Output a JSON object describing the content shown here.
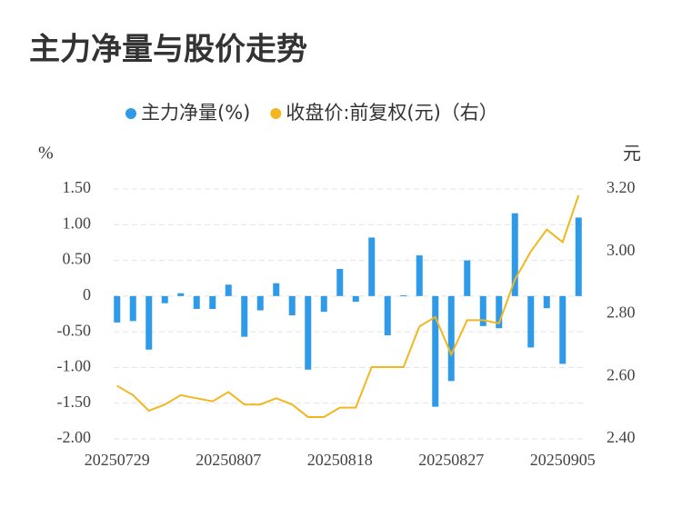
{
  "chart_data": {
    "type": "bar_line",
    "title": "主力净量与股价走势",
    "y_axis_label": "%",
    "y2_axis_label": "元",
    "categories": [
      "20250729",
      null,
      null,
      null,
      null,
      null,
      null,
      "20250807",
      null,
      null,
      null,
      null,
      null,
      null,
      "20250818",
      null,
      null,
      null,
      null,
      null,
      null,
      "20250827",
      null,
      null,
      null,
      null,
      null,
      null,
      "20250905",
      null
    ],
    "series": [
      {
        "name": "主力净量(%)",
        "color": "#2f9be8",
        "type": "bar",
        "values": [
          -0.37,
          -0.35,
          -0.75,
          -0.1,
          0.04,
          -0.18,
          -0.18,
          0.16,
          -0.57,
          -0.2,
          0.18,
          -0.27,
          -1.03,
          -0.22,
          0.38,
          -0.08,
          0.82,
          -0.55,
          0.01,
          0.57,
          -1.55,
          -1.19,
          0.5,
          -0.42,
          -0.45,
          1.16,
          -0.72,
          -0.17,
          -0.95,
          1.1
        ]
      },
      {
        "name": "收盘价:前复权(元)（右）",
        "color": "#f2b71f",
        "type": "line",
        "axis": "y2",
        "values": [
          2.57,
          2.54,
          2.49,
          2.51,
          2.54,
          2.53,
          2.52,
          2.55,
          2.51,
          2.51,
          2.53,
          2.51,
          2.47,
          2.47,
          2.5,
          2.5,
          2.63,
          2.63,
          2.63,
          2.76,
          2.79,
          2.67,
          2.78,
          2.78,
          2.77,
          2.91,
          3.0,
          3.07,
          3.03,
          3.18
        ]
      }
    ],
    "ylim": [
      -2,
      1.5
    ],
    "yticks": [
      {
        "value": 1.5,
        "label": "1.50"
      },
      {
        "value": 1,
        "label": "1.00"
      },
      {
        "value": 0.5,
        "label": "0.50"
      },
      0,
      {
        "value": -0.5,
        "label": "-0.50"
      },
      {
        "value": -1,
        "label": "-1.00"
      },
      {
        "value": -1.5,
        "label": "-1.50"
      },
      {
        "value": -2,
        "label": "-2.00"
      }
    ],
    "y2lim": [
      2.4,
      3.2
    ],
    "y2ticks": [
      {
        "value": 3.2,
        "label": "3.20"
      },
      {
        "value": 3.0,
        "label": "3.00"
      },
      {
        "value": 2.8,
        "label": "2.80"
      },
      {
        "value": 2.6,
        "label": "2.60"
      },
      {
        "value": 2.4,
        "label": "2.40"
      }
    ],
    "grid": true,
    "legend": "top"
  }
}
